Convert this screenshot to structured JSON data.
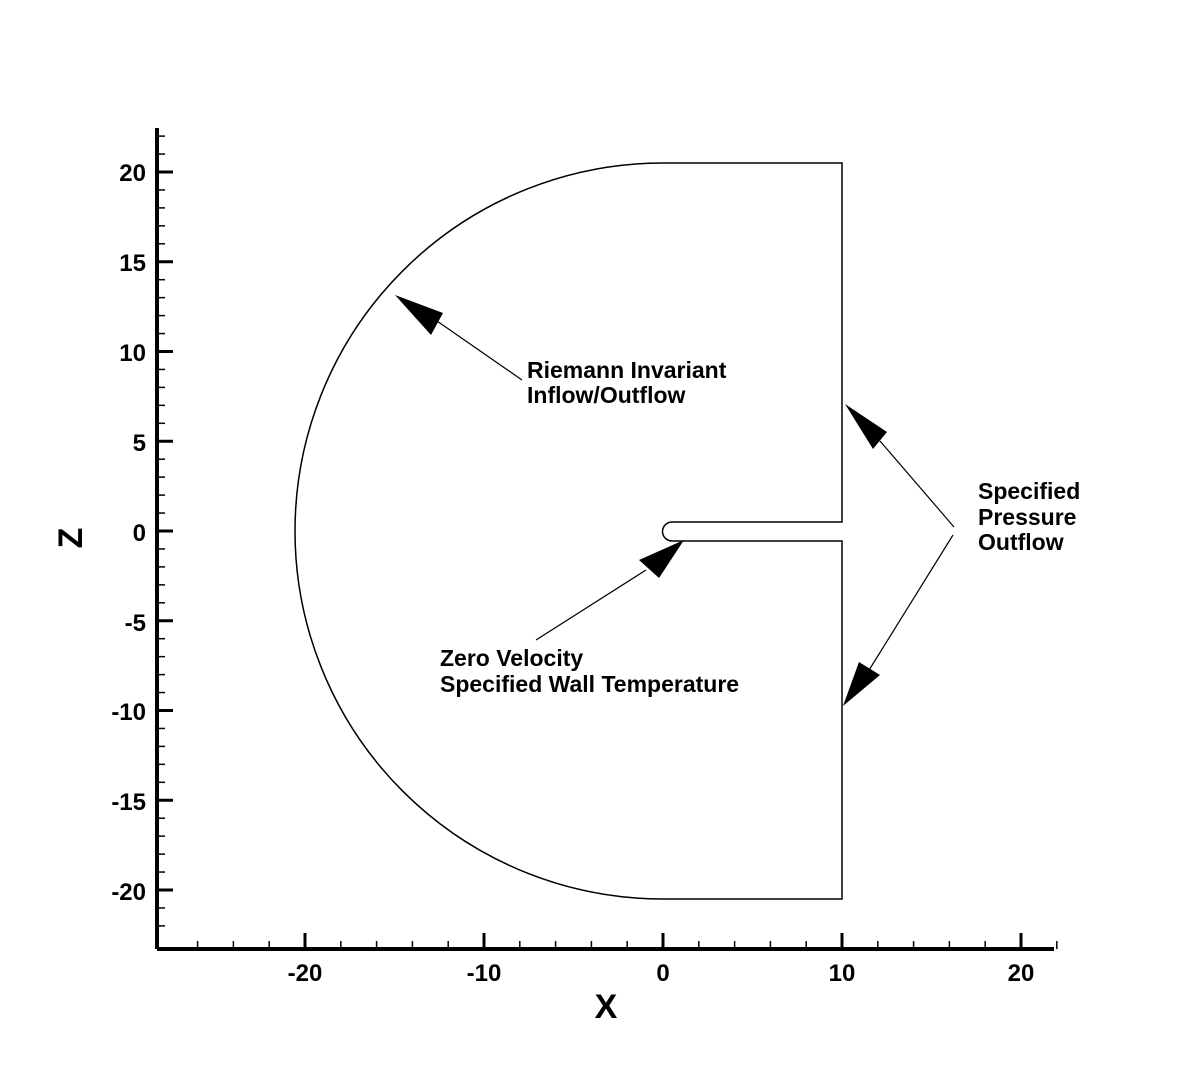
{
  "chart_data": {
    "type": "diagram",
    "xlabel": "X",
    "ylabel": "Z",
    "xlim": [
      -28,
      22
    ],
    "ylim": [
      -23,
      22.5
    ],
    "x_ticks": [
      -20,
      -10,
      0,
      10,
      20
    ],
    "y_ticks": [
      20,
      15,
      10,
      5,
      0,
      -5,
      -10,
      -15,
      -20
    ],
    "x_tick_labels": [
      "-20",
      "-10",
      "0",
      "10",
      "20"
    ],
    "y_tick_labels": [
      "20",
      "15",
      "10",
      "5",
      "0",
      "-5",
      "-10",
      "-15",
      "-20"
    ],
    "grid": false,
    "domain": {
      "arc_center": [
        0,
        0
      ],
      "arc_radius": 20.5,
      "outflow_x": 10,
      "slot_half_width": 0.5
    },
    "annotations": [
      {
        "lines": [
          "Riemann Invariant",
          "Inflow/Outflow"
        ]
      },
      {
        "lines": [
          "Specified",
          "Pressure",
          "Outflow"
        ]
      },
      {
        "lines": [
          "Zero Velocity",
          "Specified Wall Temperature"
        ]
      }
    ]
  }
}
